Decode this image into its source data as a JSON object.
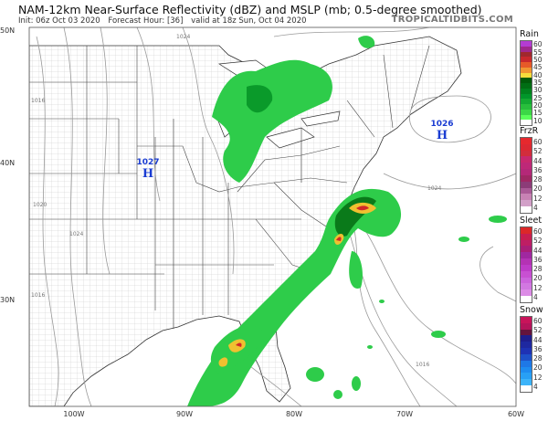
{
  "header": {
    "title": "NAM-12km Near-Surface Reflectivity (dBZ) and MSLP (mb; 0.5-degree smoothed)",
    "init": "Init: 06z Oct 03 2020",
    "forecast_hour": "Forecast Hour: [36]",
    "valid": "valid at 18z Sun, Oct 04 2020",
    "brand": "TROPICALTIDBITS.COM"
  },
  "axes": {
    "lat_labels": [
      "50N",
      "40N",
      "30N"
    ],
    "lon_labels": [
      "100W",
      "90W",
      "80W",
      "70W",
      "60W"
    ]
  },
  "pressure_centers": [
    {
      "type": "H",
      "value": "1027"
    },
    {
      "type": "H",
      "value": "1026"
    }
  ],
  "isobar_labels": [
    "1024",
    "1016",
    "1020",
    "1024",
    "1016",
    "1016",
    "1024",
    "1016"
  ],
  "legends": [
    {
      "title": "Rain",
      "labels": [
        "60",
        "55",
        "50",
        "45",
        "40",
        "35",
        "30",
        "25",
        "20",
        "15",
        "10"
      ],
      "colors": [
        "#b43cd2",
        "#a0288c",
        "#a0282d",
        "#c8282d",
        "#e65a28",
        "#f09632",
        "#f5dc3c",
        "#005a0a",
        "#006e14",
        "#00821e",
        "#00962a",
        "#14aa32",
        "#28be3c",
        "#3cd746",
        "#5aff5a",
        "#ffffff"
      ]
    },
    {
      "title": "FrzR",
      "labels": [
        "60",
        "52",
        "44",
        "36",
        "28",
        "20",
        "12",
        "4"
      ],
      "colors": [
        "#e6282d",
        "#dc2832",
        "#d22d3c",
        "#c8286e",
        "#be2878",
        "#b42878",
        "#a02864",
        "#8c3c78",
        "#aa5a96",
        "#c882b4",
        "#d2a0c8",
        "#ffffff"
      ]
    },
    {
      "title": "Sleet",
      "labels": [
        "60",
        "52",
        "44",
        "36",
        "28",
        "20",
        "12",
        "4"
      ],
      "colors": [
        "#dc2828",
        "#c81e50",
        "#be1e64",
        "#aa1e78",
        "#a028a0",
        "#b432b4",
        "#be3cc8",
        "#c850d2",
        "#cc64dc",
        "#d278e1",
        "#dc8ce6",
        "#ffffff"
      ]
    },
    {
      "title": "Snow",
      "labels": [
        "60",
        "52",
        "44",
        "36",
        "28",
        "20",
        "12",
        "4"
      ],
      "colors": [
        "#c8145a",
        "#b4145a",
        "#64143c",
        "#1e1e8c",
        "#1e28a0",
        "#1e32b4",
        "#1e50c8",
        "#1e78e6",
        "#1e8cf0",
        "#28a0f5",
        "#3cb4fa",
        "#ffffff"
      ]
    }
  ]
}
